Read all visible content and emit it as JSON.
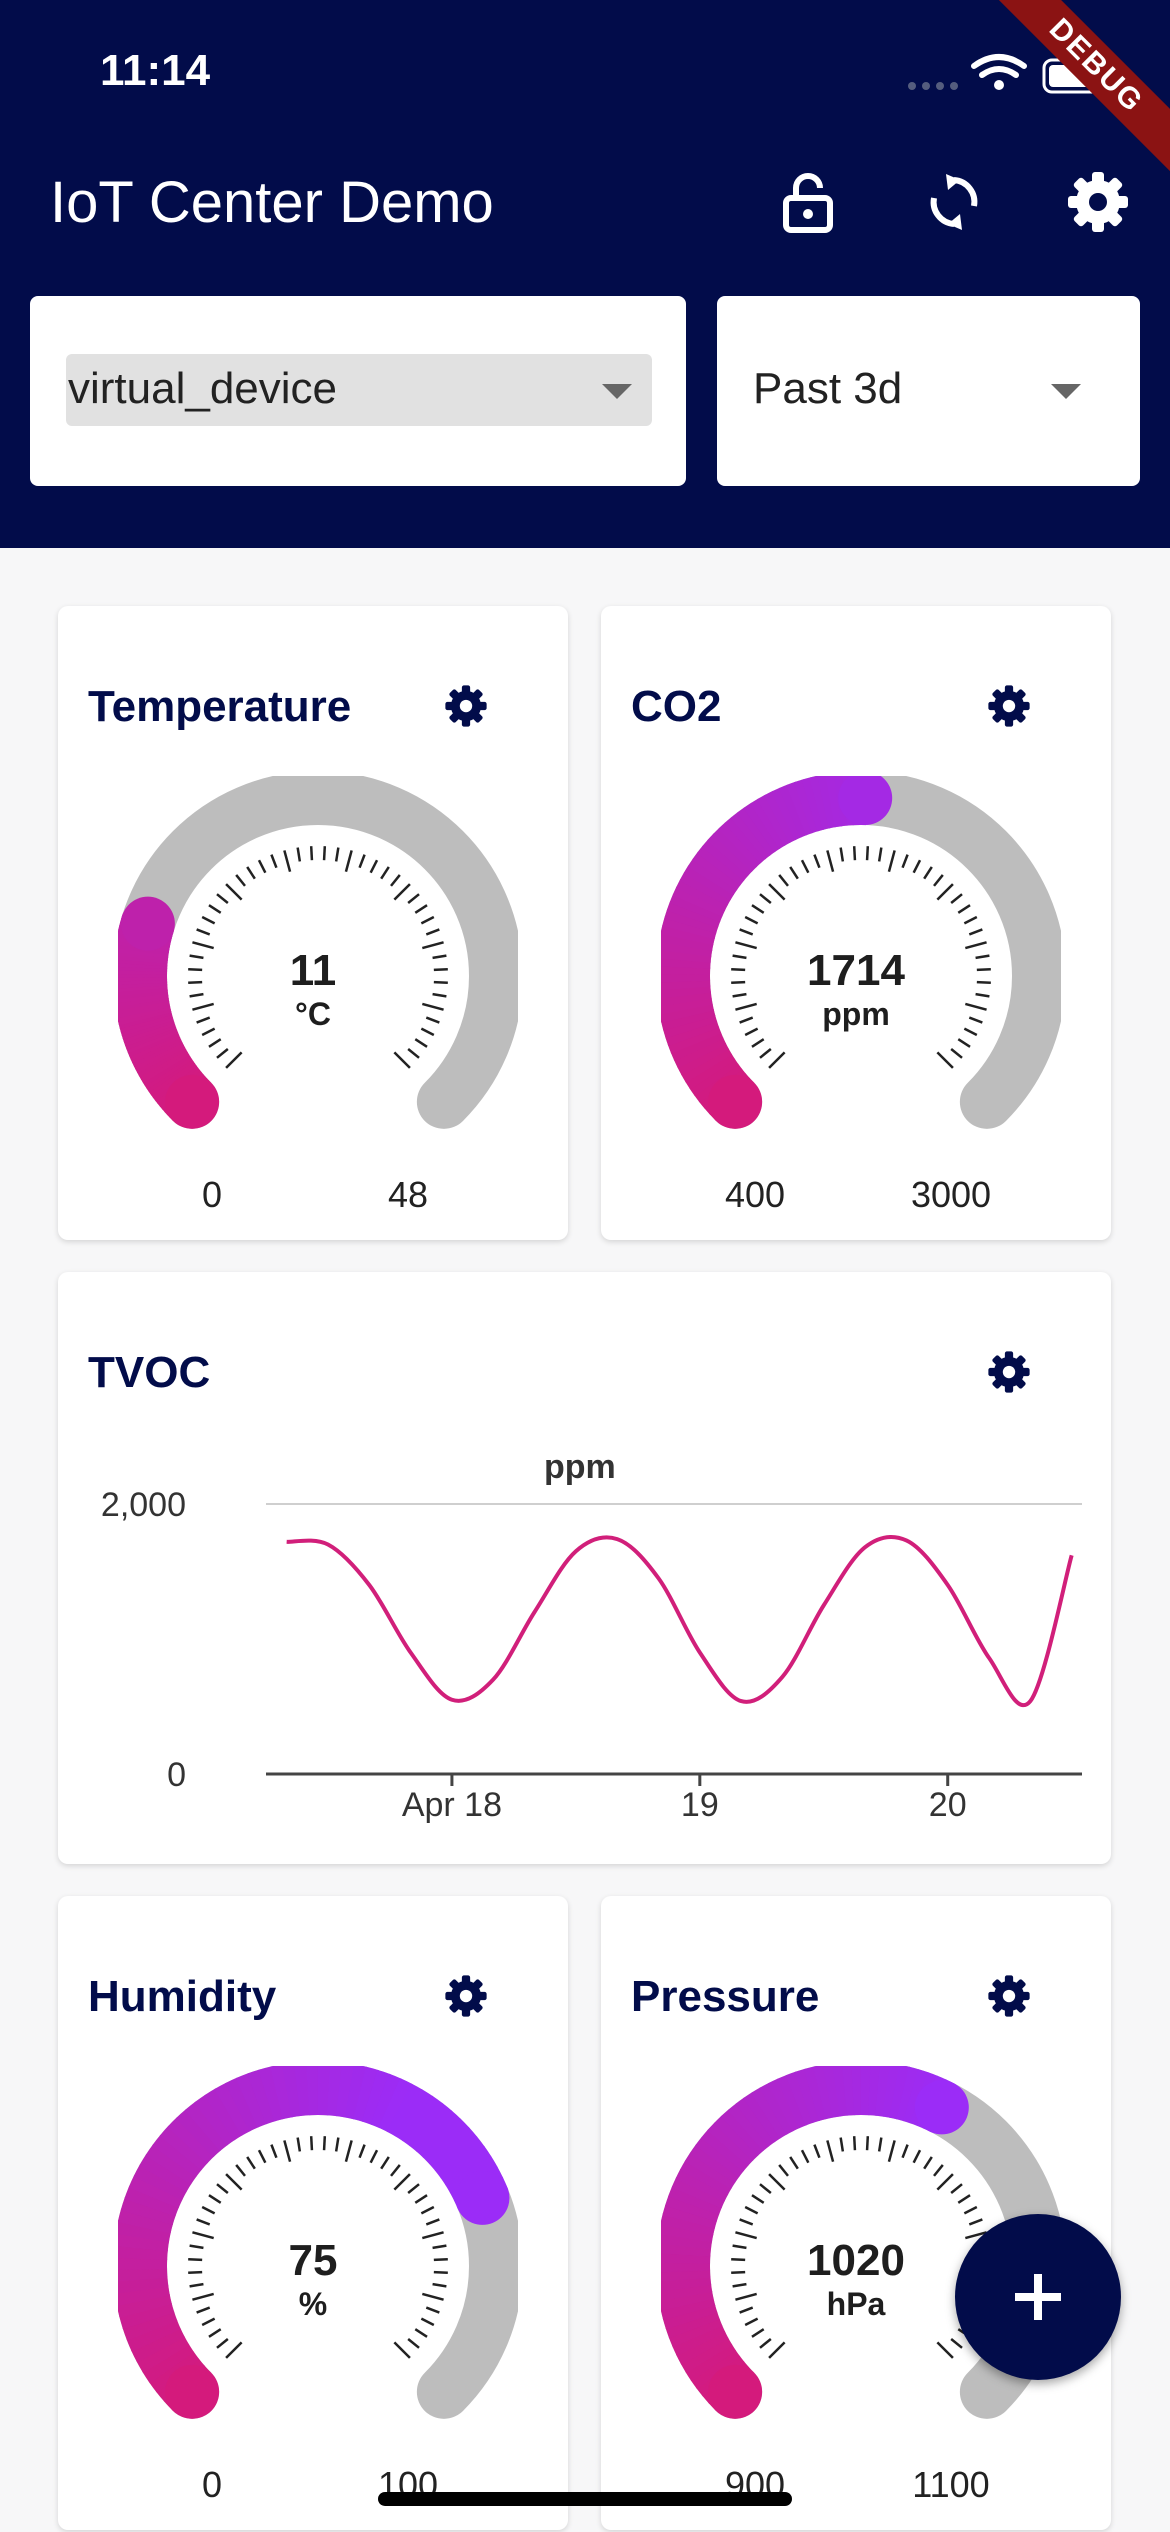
{
  "status_bar": {
    "time": "11:14",
    "debug_banner": "DEBUG"
  },
  "app_bar": {
    "title": "IoT Center Demo",
    "icons": [
      "lock-open-icon",
      "refresh-icon",
      "settings-icon"
    ]
  },
  "filters": {
    "device": {
      "value": "virtual_device"
    },
    "range": {
      "value": "Past 3d"
    }
  },
  "theme": {
    "primary": "#020c4a",
    "gauge_start": "#d41a7c",
    "gauge_end": "#9b2cf7",
    "gauge_track": "#bdbdbd",
    "line": "#d11f7a"
  },
  "cards": {
    "temperature": {
      "title": "Temperature",
      "value": "11",
      "unit": "°C",
      "min": "0",
      "max": "48",
      "fraction": 0.23
    },
    "co2": {
      "title": "CO2",
      "value": "1714",
      "unit": "ppm",
      "min": "400",
      "max": "3000",
      "fraction": 0.505
    },
    "humidity": {
      "title": "Humidity",
      "value": "75",
      "unit": "%",
      "min": "0",
      "max": "100",
      "fraction": 0.75
    },
    "pressure": {
      "title": "Pressure",
      "value": "1020",
      "unit": "hPa",
      "min": "900",
      "max": "1100",
      "fraction": 0.6
    },
    "tvoc": {
      "title": "TVOC"
    }
  },
  "chart_data": {
    "type": "line",
    "title": "ppm",
    "x_tick_labels": [
      "Apr 18",
      "19",
      "20"
    ],
    "y_tick_labels": [
      "0",
      "2,000"
    ],
    "ylim": [
      0,
      2000
    ],
    "grid": "horizontal",
    "series": [
      {
        "x": [
          "Apr 17 08:00",
          "Apr 17 12:00",
          "Apr 17 16:00",
          "Apr 17 20:00",
          "Apr 18 00:00",
          "Apr 18 04:00",
          "Apr 18 08:00",
          "Apr 18 12:00",
          "Apr 18 16:00",
          "Apr 18 20:00",
          "Apr 19 00:00",
          "Apr 19 04:00",
          "Apr 19 08:00",
          "Apr 19 12:00",
          "Apr 19 16:00",
          "Apr 19 20:00",
          "Apr 20 00:00",
          "Apr 20 04:00",
          "Apr 20 08:00",
          "Apr 20 12:00"
        ],
        "values": [
          1720,
          1700,
          1400,
          900,
          550,
          700,
          1200,
          1650,
          1740,
          1450,
          900,
          540,
          720,
          1250,
          1680,
          1730,
          1400,
          860,
          540,
          1620
        ]
      }
    ]
  }
}
